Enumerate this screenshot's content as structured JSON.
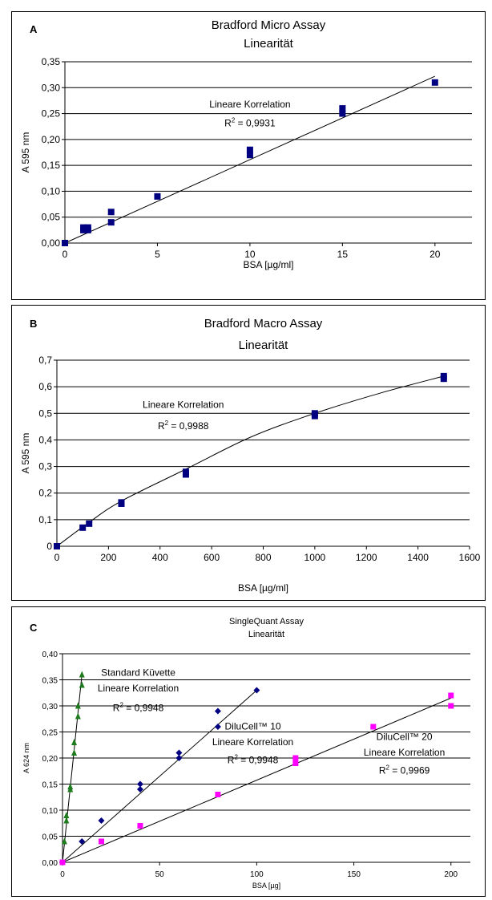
{
  "chart_data": [
    {
      "id": "A",
      "type": "scatter",
      "panel_letter": "A",
      "title": [
        "Bradford Micro Assay",
        "Linearität"
      ],
      "xlabel": "BSA [µg/ml]",
      "ylabel": "A 595 nm",
      "xlim": [
        0,
        22
      ],
      "ylim": [
        0,
        0.35
      ],
      "xticks": [
        0,
        5,
        10,
        15,
        20
      ],
      "xtick_labels": [
        "0",
        "5",
        "10",
        "15",
        "20"
      ],
      "yticks": [
        0,
        0.05,
        0.1,
        0.15,
        0.2,
        0.25,
        0.3,
        0.35
      ],
      "ytick_labels": [
        "0,00",
        "0,05",
        "0,10",
        "0,15",
        "0,20",
        "0,25",
        "0,30",
        "0,35"
      ],
      "grid": "horizontal",
      "series": [
        {
          "marker": "square",
          "color": "#000080",
          "points": [
            [
              0,
              0
            ],
            [
              1,
              0.025
            ],
            [
              1,
              0.03
            ],
            [
              1.25,
              0.025
            ],
            [
              1.25,
              0.03
            ],
            [
              2.5,
              0.04
            ],
            [
              2.5,
              0.06
            ],
            [
              5,
              0.09
            ],
            [
              10,
              0.17
            ],
            [
              10,
              0.18
            ],
            [
              15,
              0.25
            ],
            [
              15,
              0.26
            ],
            [
              20,
              0.31
            ]
          ],
          "fit": [
            [
              0,
              0
            ],
            [
              20,
              0.322
            ]
          ],
          "fit_curve": false
        }
      ],
      "annotations": [
        {
          "text": "Lineare Korrelation",
          "x": 10,
          "y": 0.262
        },
        {
          "text": "R",
          "sup": "2",
          "rest": " = 0,9931",
          "x": 10,
          "y": 0.225
        }
      ]
    },
    {
      "id": "B",
      "type": "scatter",
      "panel_letter": "B",
      "title": [
        "Bradford Macro Assay",
        "Linearität"
      ],
      "xlabel": "BSA [µg/ml]",
      "ylabel": "A 595 nm",
      "xlim": [
        0,
        1600
      ],
      "ylim": [
        0,
        0.7
      ],
      "xticks": [
        0,
        200,
        400,
        600,
        800,
        1000,
        1200,
        1400,
        1600
      ],
      "xtick_labels": [
        "0",
        "200",
        "400",
        "600",
        "800",
        "1000",
        "1200",
        "1400",
        "1600"
      ],
      "yticks": [
        0,
        0.1,
        0.2,
        0.3,
        0.4,
        0.5,
        0.6,
        0.7
      ],
      "ytick_labels": [
        "0",
        "0,1",
        "0,2",
        "0,3",
        "0,4",
        "0,5",
        "0,6",
        "0,7"
      ],
      "grid": "horizontal",
      "series": [
        {
          "marker": "square",
          "color": "#000080",
          "points": [
            [
              0,
              0
            ],
            [
              100,
              0.07
            ],
            [
              125,
              0.085
            ],
            [
              250,
              0.16
            ],
            [
              250,
              0.165
            ],
            [
              500,
              0.27
            ],
            [
              500,
              0.28
            ],
            [
              1000,
              0.49
            ],
            [
              1000,
              0.5
            ],
            [
              1500,
              0.63
            ],
            [
              1500,
              0.64
            ]
          ],
          "fit": [
            [
              0,
              0
            ],
            [
              125,
              0.09
            ],
            [
              250,
              0.17
            ],
            [
              500,
              0.29
            ],
            [
              750,
              0.41
            ],
            [
              1000,
              0.5
            ],
            [
              1250,
              0.575
            ],
            [
              1500,
              0.64
            ]
          ],
          "fit_curve": true
        }
      ],
      "annotations": [
        {
          "text": "Lineare Korrelation",
          "x": 490,
          "y": 0.52
        },
        {
          "text": "R",
          "sup": "2",
          "rest": " = 0,9988",
          "x": 490,
          "y": 0.44
        }
      ]
    },
    {
      "id": "C",
      "type": "scatter",
      "panel_letter": "C",
      "title": [
        "SingleQuant Assay",
        "Linearität"
      ],
      "xlabel": "BSA [µg]",
      "ylabel": "A 624 nm",
      "xlim": [
        0,
        210
      ],
      "ylim": [
        0,
        0.4
      ],
      "xticks": [
        0,
        50,
        100,
        150,
        200
      ],
      "xtick_labels": [
        "0",
        "50",
        "100",
        "150",
        "200"
      ],
      "yticks": [
        0,
        0.05,
        0.1,
        0.15,
        0.2,
        0.25,
        0.3,
        0.35,
        0.4
      ],
      "ytick_labels": [
        "0,00",
        "0,05",
        "0,10",
        "0,15",
        "0,20",
        "0,25",
        "0,30",
        "0,35",
        "0,40"
      ],
      "grid": "horizontal",
      "small": true,
      "series": [
        {
          "marker": "triangle",
          "color": "#1E7B1E",
          "points": [
            [
              0,
              0
            ],
            [
              1,
              0.04
            ],
            [
              2,
              0.08
            ],
            [
              2,
              0.09
            ],
            [
              4,
              0.14
            ],
            [
              4,
              0.145
            ],
            [
              6,
              0.21
            ],
            [
              6,
              0.23
            ],
            [
              8,
              0.28
            ],
            [
              8,
              0.3
            ],
            [
              10,
              0.34
            ],
            [
              10,
              0.36
            ]
          ],
          "fit": [
            [
              0,
              0
            ],
            [
              10,
              0.36
            ]
          ],
          "fit_curve": false
        },
        {
          "marker": "diamond",
          "color": "#000080",
          "points": [
            [
              0,
              0
            ],
            [
              10,
              0.04
            ],
            [
              20,
              0.08
            ],
            [
              40,
              0.14
            ],
            [
              40,
              0.15
            ],
            [
              60,
              0.2
            ],
            [
              60,
              0.21
            ],
            [
              80,
              0.26
            ],
            [
              80,
              0.29
            ],
            [
              100,
              0.33
            ]
          ],
          "fit": [
            [
              0,
              0
            ],
            [
              100,
              0.33
            ]
          ],
          "fit_curve": false
        },
        {
          "marker": "square",
          "color": "#FF00FF",
          "points": [
            [
              0,
              0
            ],
            [
              20,
              0.04
            ],
            [
              40,
              0.07
            ],
            [
              80,
              0.13
            ],
            [
              120,
              0.19
            ],
            [
              120,
              0.2
            ],
            [
              160,
              0.26
            ],
            [
              200,
              0.3
            ],
            [
              200,
              0.32
            ]
          ],
          "fit": [
            [
              0,
              0
            ],
            [
              200,
              0.315
            ]
          ],
          "fit_curve": false
        }
      ],
      "annotations": [
        {
          "text": "Standard Küvette",
          "x": 39,
          "y": 0.358
        },
        {
          "text": "Lineare Korrelation",
          "x": 39,
          "y": 0.328
        },
        {
          "text": "R",
          "sup": "2",
          "rest": " = 0,9948",
          "x": 39,
          "y": 0.29
        },
        {
          "text": "DiluCell™ 10",
          "x": 98,
          "y": 0.255
        },
        {
          "text": "Lineare Korrelation",
          "x": 98,
          "y": 0.225
        },
        {
          "text": "R",
          "sup": "2",
          "rest": " = 0,9948",
          "x": 98,
          "y": 0.19
        },
        {
          "text": "DiluCell™ 20",
          "x": 176,
          "y": 0.235
        },
        {
          "text": "Lineare Korrelation",
          "x": 176,
          "y": 0.205
        },
        {
          "text": "R",
          "sup": "2",
          "rest": " = 0,9969",
          "x": 176,
          "y": 0.17
        }
      ]
    }
  ]
}
